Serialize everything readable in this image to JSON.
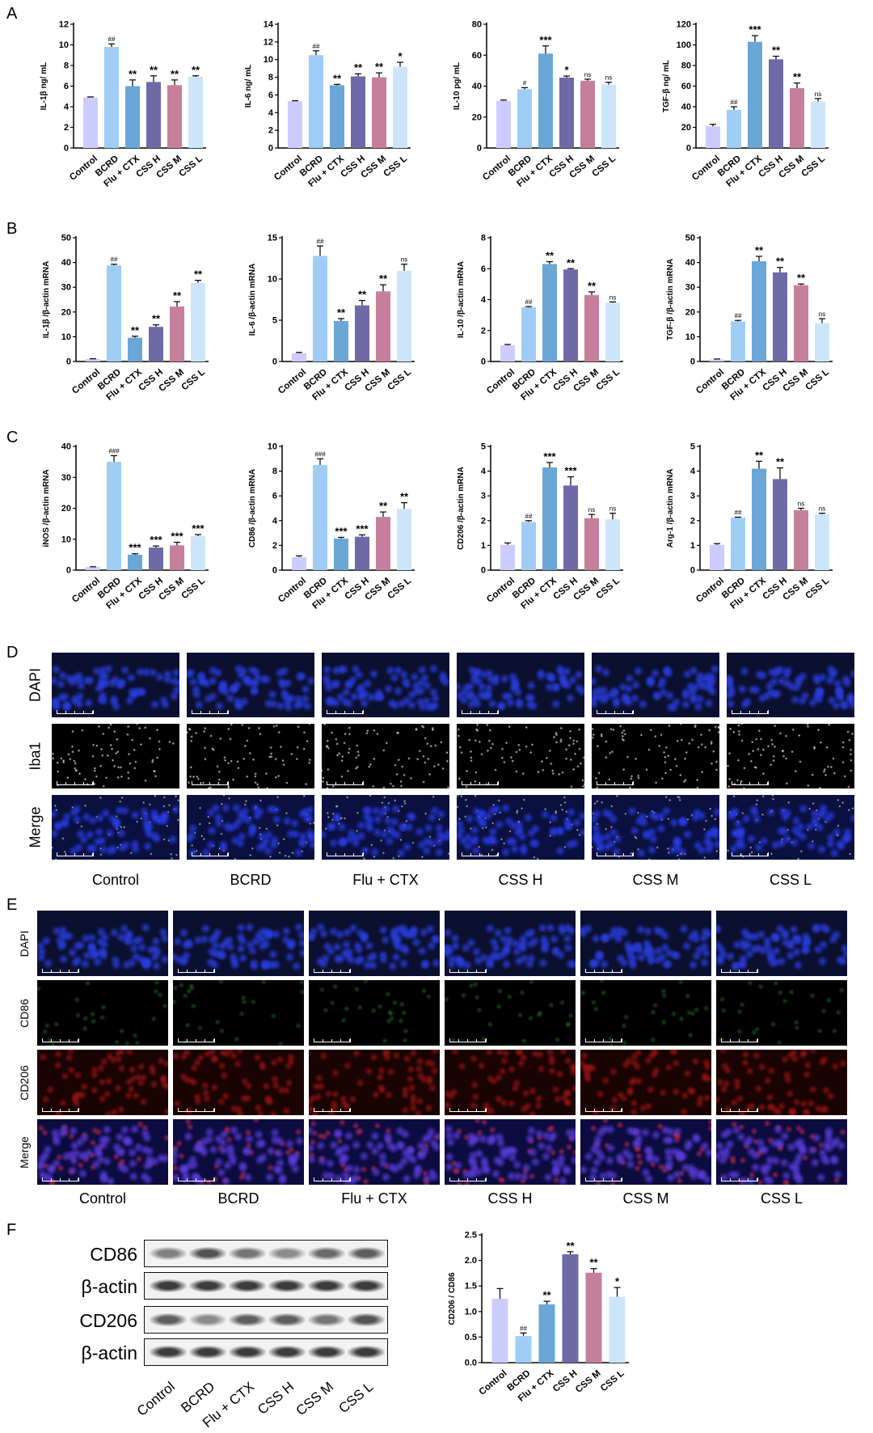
{
  "panels": {
    "A": "A",
    "B": "B",
    "C": "C",
    "D": "D",
    "E": "E",
    "F": "F"
  },
  "groups": [
    "Control",
    "BCRD",
    "Flu + CTX",
    "CSS H",
    "CSS M",
    "CSS L"
  ],
  "colors": [
    "#ccccff",
    "#9fcdf6",
    "#6aa6d6",
    "#6e6aa6",
    "#c57f9b",
    "#cde5fb"
  ],
  "chart_data": [
    {
      "type": "bar",
      "id": "A1",
      "ylabel": "IL-1β ng/ mL",
      "ylim": [
        0,
        12
      ],
      "ticks": [
        "0",
        "2",
        "4",
        "6",
        "8",
        "10",
        "12"
      ],
      "categories": [
        "Control",
        "BCRD",
        "Flu + CTX",
        "CSS H",
        "CSS M",
        "CSS L"
      ],
      "values": [
        4.9,
        9.8,
        6.0,
        6.4,
        6.1,
        6.9
      ],
      "errors": [
        0.05,
        0.3,
        0.6,
        0.6,
        0.5,
        0.1
      ],
      "sig": [
        "",
        "##",
        "**",
        "**",
        "**",
        "**"
      ]
    },
    {
      "type": "bar",
      "id": "A2",
      "ylabel": "IL-6 ng/ mL",
      "ylim": [
        0,
        14
      ],
      "ticks": [
        "0",
        "2",
        "4",
        "6",
        "8",
        "10",
        "12",
        "14"
      ],
      "categories": [
        "Control",
        "BCRD",
        "Flu + CTX",
        "CSS H",
        "CSS M",
        "CSS L"
      ],
      "values": [
        5.3,
        10.5,
        7.1,
        8.1,
        8.0,
        9.2
      ],
      "errors": [
        0.05,
        0.5,
        0.1,
        0.3,
        0.5,
        0.5
      ],
      "sig": [
        "",
        "##",
        "**",
        "**",
        "**",
        "*"
      ]
    },
    {
      "type": "bar",
      "id": "A3",
      "ylabel": "IL-10 pg/ mL",
      "ylim": [
        0,
        80
      ],
      "ticks": [
        "0",
        "20",
        "40",
        "60",
        "80"
      ],
      "categories": [
        "Control",
        "BCRD",
        "Flu + CTX",
        "CSS H",
        "CSS M",
        "CSS L"
      ],
      "values": [
        30.5,
        38,
        61,
        45.5,
        43.5,
        41
      ],
      "errors": [
        0.5,
        1,
        5,
        1,
        1,
        1.5
      ],
      "sig": [
        "",
        "#",
        "***",
        "*",
        "ns",
        "ns"
      ]
    },
    {
      "type": "bar",
      "id": "A4",
      "ylabel": "TGF-β ng/ mL",
      "ylim": [
        0,
        120
      ],
      "ticks": [
        "0",
        "20",
        "40",
        "60",
        "80",
        "100",
        "120"
      ],
      "categories": [
        "Control",
        "BCRD",
        "Flu + CTX",
        "CSS H",
        "CSS M",
        "CSS L"
      ],
      "values": [
        21,
        37,
        103,
        86,
        58,
        45
      ],
      "errors": [
        2,
        3,
        6,
        3,
        5,
        3
      ],
      "sig": [
        "",
        "##",
        "***",
        "**",
        "**",
        "ns"
      ]
    },
    {
      "type": "bar",
      "id": "B1",
      "ylabel": "IL-1β /β-actin mRNA",
      "ylim": [
        0,
        50
      ],
      "ticks": [
        "0",
        "10",
        "20",
        "30",
        "40",
        "50"
      ],
      "categories": [
        "Control",
        "BCRD",
        "Flu + CTX",
        "CSS H",
        "CSS M",
        "CSS L"
      ],
      "values": [
        1,
        38.8,
        9.6,
        14,
        22.2,
        31.8
      ],
      "errors": [
        0.1,
        0.5,
        0.6,
        0.8,
        2,
        1
      ],
      "sig": [
        "",
        "##",
        "**",
        "**",
        "**",
        "**"
      ]
    },
    {
      "type": "bar",
      "id": "B2",
      "ylabel": "IL-6 /β-actin mRNA",
      "ylim": [
        0,
        15
      ],
      "ticks": [
        "0",
        "5",
        "10",
        "15"
      ],
      "categories": [
        "Control",
        "BCRD",
        "Flu + CTX",
        "CSS H",
        "CSS M",
        "CSS L"
      ],
      "values": [
        1,
        12.8,
        4.9,
        6.8,
        8.5,
        11
      ],
      "errors": [
        0.1,
        1.2,
        0.3,
        0.6,
        0.8,
        0.8
      ],
      "sig": [
        "",
        "##",
        "**",
        "**",
        "**",
        "ns"
      ]
    },
    {
      "type": "bar",
      "id": "B3",
      "ylabel": "IL-10 /β-actin mRNA",
      "ylim": [
        0,
        8
      ],
      "ticks": [
        "0",
        "2",
        "4",
        "6",
        "8"
      ],
      "categories": [
        "Control",
        "BCRD",
        "Flu + CTX",
        "CSS H",
        "CSS M",
        "CSS L"
      ],
      "values": [
        1.05,
        3.5,
        6.3,
        5.95,
        4.3,
        3.8
      ],
      "errors": [
        0.05,
        0.05,
        0.15,
        0.05,
        0.2,
        0.05
      ],
      "sig": [
        "",
        "##",
        "**",
        "**",
        "**",
        "ns"
      ]
    },
    {
      "type": "bar",
      "id": "B4",
      "ylabel": "TGF-β /β-actin mRNA",
      "ylim": [
        0,
        50
      ],
      "ticks": [
        "0",
        "10",
        "20",
        "30",
        "40",
        "50"
      ],
      "categories": [
        "Control",
        "BCRD",
        "Flu + CTX",
        "CSS H",
        "CSS M",
        "CSS L"
      ],
      "values": [
        0.8,
        16.2,
        40.5,
        36,
        30.8,
        15.5
      ],
      "errors": [
        0.2,
        0.4,
        2,
        2,
        0.5,
        1.8
      ],
      "sig": [
        "",
        "##",
        "**",
        "**",
        "**",
        "ns"
      ]
    },
    {
      "type": "bar",
      "id": "C1",
      "ylabel": "iNOS /β-actin mRNA",
      "ylim": [
        0,
        40
      ],
      "ticks": [
        "0",
        "10",
        "20",
        "30",
        "40"
      ],
      "categories": [
        "Control",
        "BCRD",
        "Flu + CTX",
        "CSS H",
        "CSS M",
        "CSS L"
      ],
      "values": [
        1,
        35,
        5,
        7.3,
        8,
        11
      ],
      "errors": [
        0.1,
        2,
        0.3,
        0.5,
        1,
        0.5
      ],
      "sig": [
        "",
        "###",
        "***",
        "***",
        "***",
        "***"
      ]
    },
    {
      "type": "bar",
      "id": "C2",
      "ylabel": "CD86 /β-actin mRNA",
      "ylim": [
        0,
        10
      ],
      "ticks": [
        "0",
        "2",
        "4",
        "6",
        "8",
        "10"
      ],
      "categories": [
        "Control",
        "BCRD",
        "Flu + CTX",
        "CSS H",
        "CSS M",
        "CSS L"
      ],
      "values": [
        1.05,
        8.5,
        2.55,
        2.7,
        4.3,
        4.95
      ],
      "errors": [
        0.1,
        0.5,
        0.1,
        0.15,
        0.4,
        0.5
      ],
      "sig": [
        "",
        "###",
        "***",
        "***",
        "**",
        "**"
      ]
    },
    {
      "type": "bar",
      "id": "C3",
      "ylabel": "CD206 /β-actin mRNA",
      "ylim": [
        0,
        5
      ],
      "ticks": [
        "0",
        "1",
        "2",
        "3",
        "4",
        "5"
      ],
      "categories": [
        "Control",
        "BCRD",
        "Flu + CTX",
        "CSS H",
        "CSS M",
        "CSS L"
      ],
      "values": [
        1.02,
        1.95,
        4.15,
        3.42,
        2.1,
        2.05
      ],
      "errors": [
        0.08,
        0.05,
        0.2,
        0.35,
        0.15,
        0.25
      ],
      "sig": [
        "",
        "##",
        "***",
        "***",
        "ns",
        "ns"
      ]
    },
    {
      "type": "bar",
      "id": "C4",
      "ylabel": "Arg-1 /β-actin mRNA",
      "ylim": [
        0,
        5
      ],
      "ticks": [
        "0",
        "1",
        "2",
        "3",
        "4",
        "5"
      ],
      "categories": [
        "Control",
        "BCRD",
        "Flu + CTX",
        "CSS H",
        "CSS M",
        "CSS L"
      ],
      "values": [
        1.02,
        2.12,
        4.1,
        3.68,
        2.42,
        2.26
      ],
      "errors": [
        0.05,
        0.02,
        0.3,
        0.45,
        0.08,
        0.04
      ],
      "sig": [
        "",
        "##",
        "**",
        "**",
        "ns",
        "ns"
      ]
    },
    {
      "type": "bar",
      "id": "F1",
      "ylabel": "CD206 / CD86",
      "ylim": [
        0,
        2.5
      ],
      "ticks": [
        "0.0",
        "0.5",
        "1.0",
        "1.5",
        "2.0",
        "2.5"
      ],
      "categories": [
        "Control",
        "BCRD",
        "Flu + CTX",
        "CSS H",
        "CSS M",
        "CSS L"
      ],
      "values": [
        1.25,
        0.52,
        1.14,
        2.12,
        1.76,
        1.29
      ],
      "errors": [
        0.2,
        0.06,
        0.06,
        0.05,
        0.08,
        0.18
      ],
      "sig": [
        "",
        "##",
        "**",
        "**",
        "**",
        "*"
      ]
    }
  ],
  "microscopy": {
    "D": {
      "rows": [
        "DAPI",
        "Iba1",
        "Merge"
      ],
      "columns": [
        "Control",
        "BCRD",
        "Flu + CTX",
        "CSS H",
        "CSS M",
        "CSS L"
      ]
    },
    "E": {
      "rows": [
        "DAPI",
        "CD86",
        "CD206",
        "Merge"
      ],
      "columns": [
        "Control",
        "BCRD",
        "Flu + CTX",
        "CSS H",
        "CSS M",
        "CSS L"
      ]
    }
  },
  "western": {
    "rows": [
      "CD86",
      "β-actin",
      "CD206",
      "β-actin"
    ],
    "lanes": [
      "Control",
      "BCRD",
      "Flu + CTX",
      "CSS H",
      "CSS M",
      "CSS L"
    ],
    "intensity": [
      [
        0.55,
        0.75,
        0.6,
        0.5,
        0.65,
        0.7
      ],
      [
        0.85,
        0.85,
        0.85,
        0.85,
        0.85,
        0.85
      ],
      [
        0.7,
        0.5,
        0.7,
        0.7,
        0.6,
        0.75
      ],
      [
        0.85,
        0.85,
        0.85,
        0.85,
        0.85,
        0.85
      ]
    ]
  }
}
